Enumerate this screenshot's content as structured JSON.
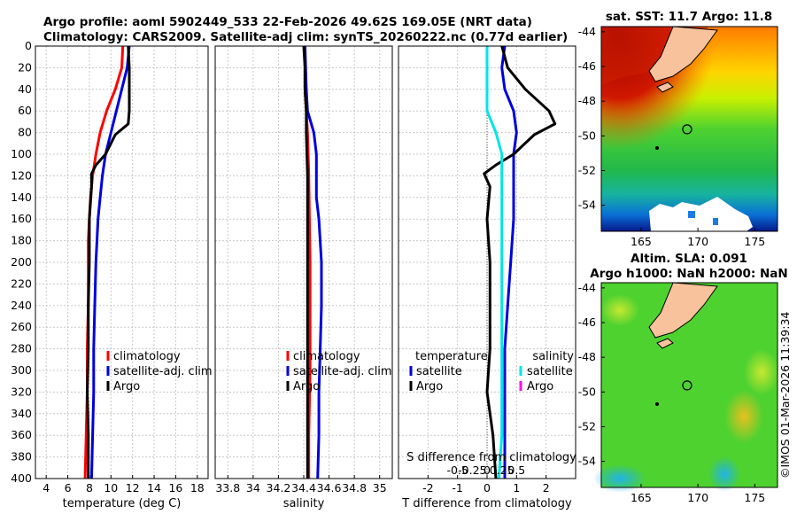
{
  "title": {
    "line1": "Argo profile: aoml 5902449_533 22-Feb-2026 49.62S 169.05E (NRT data)",
    "line2": "Climatology: CARS2009. Satellite-adj clim: synTS_20260222.nc (0.77d earlier)"
  },
  "watermark": "©IMOS 01-Mar-2026 11:39:34",
  "colors": {
    "climatology": "#ff0000",
    "satellite": "#0000dd",
    "argo": "#000000",
    "salinity_sat": "#00e5e5",
    "salinity_argo": "#ff00ff"
  },
  "chart_data": [
    {
      "id": "temperature",
      "type": "line",
      "xlabel": "temperature (deg C)",
      "ylabel": "",
      "xlim": [
        3,
        19
      ],
      "ylim": [
        400,
        0
      ],
      "xticks": [
        "4",
        "6",
        "8",
        "10",
        "12",
        "14",
        "16",
        "18"
      ],
      "yticks": [
        "0",
        "20",
        "40",
        "60",
        "80",
        "100",
        "120",
        "140",
        "160",
        "180",
        "200",
        "220",
        "240",
        "260",
        "280",
        "300",
        "320",
        "340",
        "360",
        "380",
        "400"
      ],
      "legend": [
        "climatology",
        "satellite-adj. clim",
        "Argo"
      ],
      "series": [
        {
          "name": "climatology",
          "color": "red",
          "points": [
            [
              11.1,
              0
            ],
            [
              11.0,
              20
            ],
            [
              10.4,
              40
            ],
            [
              9.6,
              60
            ],
            [
              9.0,
              80
            ],
            [
              8.6,
              100
            ],
            [
              8.3,
              120
            ],
            [
              8.1,
              140
            ],
            [
              8.0,
              160
            ],
            [
              7.9,
              180
            ],
            [
              7.9,
              200
            ],
            [
              7.9,
              240
            ],
            [
              7.8,
              280
            ],
            [
              7.8,
              320
            ],
            [
              7.7,
              360
            ],
            [
              7.6,
              400
            ]
          ]
        },
        {
          "name": "satellite-adj. clim",
          "color": "blue",
          "points": [
            [
              11.7,
              0
            ],
            [
              11.5,
              20
            ],
            [
              11.0,
              40
            ],
            [
              10.5,
              60
            ],
            [
              10.0,
              80
            ],
            [
              9.5,
              100
            ],
            [
              9.2,
              120
            ],
            [
              9.0,
              140
            ],
            [
              8.8,
              160
            ],
            [
              8.7,
              180
            ],
            [
              8.6,
              200
            ],
            [
              8.5,
              240
            ],
            [
              8.4,
              280
            ],
            [
              8.4,
              320
            ],
            [
              8.3,
              360
            ],
            [
              8.2,
              400
            ]
          ]
        },
        {
          "name": "Argo",
          "color": "black",
          "points": [
            [
              11.6,
              0
            ],
            [
              11.7,
              20
            ],
            [
              11.7,
              40
            ],
            [
              11.7,
              60
            ],
            [
              11.6,
              72
            ],
            [
              10.4,
              82
            ],
            [
              9.5,
              100
            ],
            [
              8.6,
              110
            ],
            [
              8.2,
              118
            ],
            [
              8.2,
              130
            ],
            [
              8.0,
              160
            ],
            [
              8.0,
              200
            ],
            [
              7.9,
              240
            ],
            [
              7.9,
              280
            ],
            [
              7.8,
              320
            ],
            [
              7.9,
              360
            ],
            [
              7.9,
              400
            ]
          ]
        }
      ]
    },
    {
      "id": "salinity",
      "type": "line",
      "xlabel": "salinity",
      "ylabel": "",
      "xlim": [
        33.7,
        35.1
      ],
      "ylim": [
        400,
        0
      ],
      "xticks": [
        "33.8",
        "34",
        "34.2",
        "34.4",
        "34.6",
        "34.8",
        "35"
      ],
      "legend": [
        "climatology",
        "satellite-adj. clim",
        "Argo"
      ],
      "series": [
        {
          "name": "climatology",
          "color": "red",
          "points": [
            [
              34.41,
              0
            ],
            [
              34.41,
              40
            ],
            [
              34.42,
              60
            ],
            [
              34.43,
              80
            ],
            [
              34.44,
              120
            ],
            [
              34.45,
              200
            ],
            [
              34.45,
              300
            ],
            [
              34.44,
              360
            ],
            [
              34.44,
              400
            ]
          ]
        },
        {
          "name": "satellite-adj. clim",
          "color": "blue",
          "points": [
            [
              34.41,
              0
            ],
            [
              34.42,
              40
            ],
            [
              34.43,
              60
            ],
            [
              34.48,
              80
            ],
            [
              34.5,
              100
            ],
            [
              34.5,
              140
            ],
            [
              34.52,
              160
            ],
            [
              34.54,
              200
            ],
            [
              34.54,
              240
            ],
            [
              34.53,
              280
            ],
            [
              34.52,
              320
            ],
            [
              34.52,
              360
            ],
            [
              34.51,
              400
            ]
          ]
        },
        {
          "name": "Argo",
          "color": "black",
          "points": [
            [
              34.4,
              0
            ],
            [
              34.41,
              20
            ],
            [
              34.41,
              40
            ],
            [
              34.42,
              60
            ],
            [
              34.42,
              80
            ],
            [
              34.43,
              120
            ],
            [
              34.43,
              200
            ],
            [
              34.43,
              300
            ],
            [
              34.43,
              360
            ],
            [
              34.43,
              400
            ]
          ]
        }
      ]
    },
    {
      "id": "difference",
      "type": "line",
      "xlabel": "T difference from climatology",
      "xlabel2": "S difference from climatology",
      "xlim": [
        -3,
        3
      ],
      "ylim": [
        400,
        0
      ],
      "xticks": [
        "-2",
        "-1",
        "0",
        "1",
        "2"
      ],
      "xticks2": [
        "-0.5",
        "-0.25",
        "0",
        "0.25",
        "0.5"
      ],
      "legend_t_title": "temperature",
      "legend_s_title": "salinity",
      "legend_t": [
        "satellite",
        "Argo"
      ],
      "legend_s": [
        "satellite",
        "Argo"
      ],
      "series": [
        {
          "name": "T satellite",
          "color": "blue",
          "points": [
            [
              0.6,
              0
            ],
            [
              0.5,
              20
            ],
            [
              0.6,
              40
            ],
            [
              0.9,
              60
            ],
            [
              1.0,
              80
            ],
            [
              0.9,
              100
            ],
            [
              0.9,
              120
            ],
            [
              0.9,
              160
            ],
            [
              0.8,
              200
            ],
            [
              0.7,
              240
            ],
            [
              0.6,
              280
            ],
            [
              0.6,
              320
            ],
            [
              0.6,
              360
            ],
            [
              0.6,
              400
            ]
          ]
        },
        {
          "name": "T Argo",
          "color": "black",
          "points": [
            [
              0.5,
              0
            ],
            [
              0.7,
              20
            ],
            [
              1.3,
              40
            ],
            [
              2.1,
              60
            ],
            [
              2.3,
              72
            ],
            [
              1.6,
              82
            ],
            [
              0.9,
              100
            ],
            [
              0.3,
              110
            ],
            [
              -0.1,
              118
            ],
            [
              0.1,
              130
            ],
            [
              0.0,
              160
            ],
            [
              0.1,
              200
            ],
            [
              0.1,
              240
            ],
            [
              0.1,
              280
            ],
            [
              0.0,
              320
            ],
            [
              0.2,
              360
            ],
            [
              0.3,
              400
            ]
          ]
        },
        {
          "name": "S satellite",
          "color": "cyan",
          "points": [
            [
              0.0,
              0
            ],
            [
              0.0,
              40
            ],
            [
              0.0,
              60
            ],
            [
              0.3,
              80
            ],
            [
              0.5,
              100
            ],
            [
              0.5,
              140
            ],
            [
              0.5,
              160
            ],
            [
              0.5,
              200
            ],
            [
              0.5,
              240
            ],
            [
              0.5,
              280
            ],
            [
              0.5,
              320
            ],
            [
              0.5,
              360
            ],
            [
              0.4,
              400
            ]
          ]
        },
        {
          "name": "S Argo",
          "color": "magenta",
          "points": []
        }
      ]
    }
  ],
  "maps": {
    "sst": {
      "title": "sat. SST: 11.7 Argo: 11.8",
      "yticks": [
        "-44",
        "-46",
        "-48",
        "-50",
        "-52",
        "-54"
      ],
      "xticks": [
        "165",
        "170",
        "175"
      ],
      "lon": [
        161.5,
        177.0
      ],
      "lat": [
        -55.5,
        -43.7
      ],
      "argo_pos": [
        169.05,
        -49.62
      ]
    },
    "sla": {
      "title1": "Altim. SLA: 0.091",
      "title2": "Argo h1000: NaN h2000: NaN",
      "yticks": [
        "-44",
        "-46",
        "-48",
        "-50",
        "-52",
        "-54"
      ],
      "xticks": [
        "165",
        "170",
        "175"
      ],
      "lon": [
        161.5,
        177.0
      ],
      "lat": [
        -55.5,
        -43.7
      ],
      "argo_pos": [
        169.05,
        -49.62
      ]
    }
  }
}
